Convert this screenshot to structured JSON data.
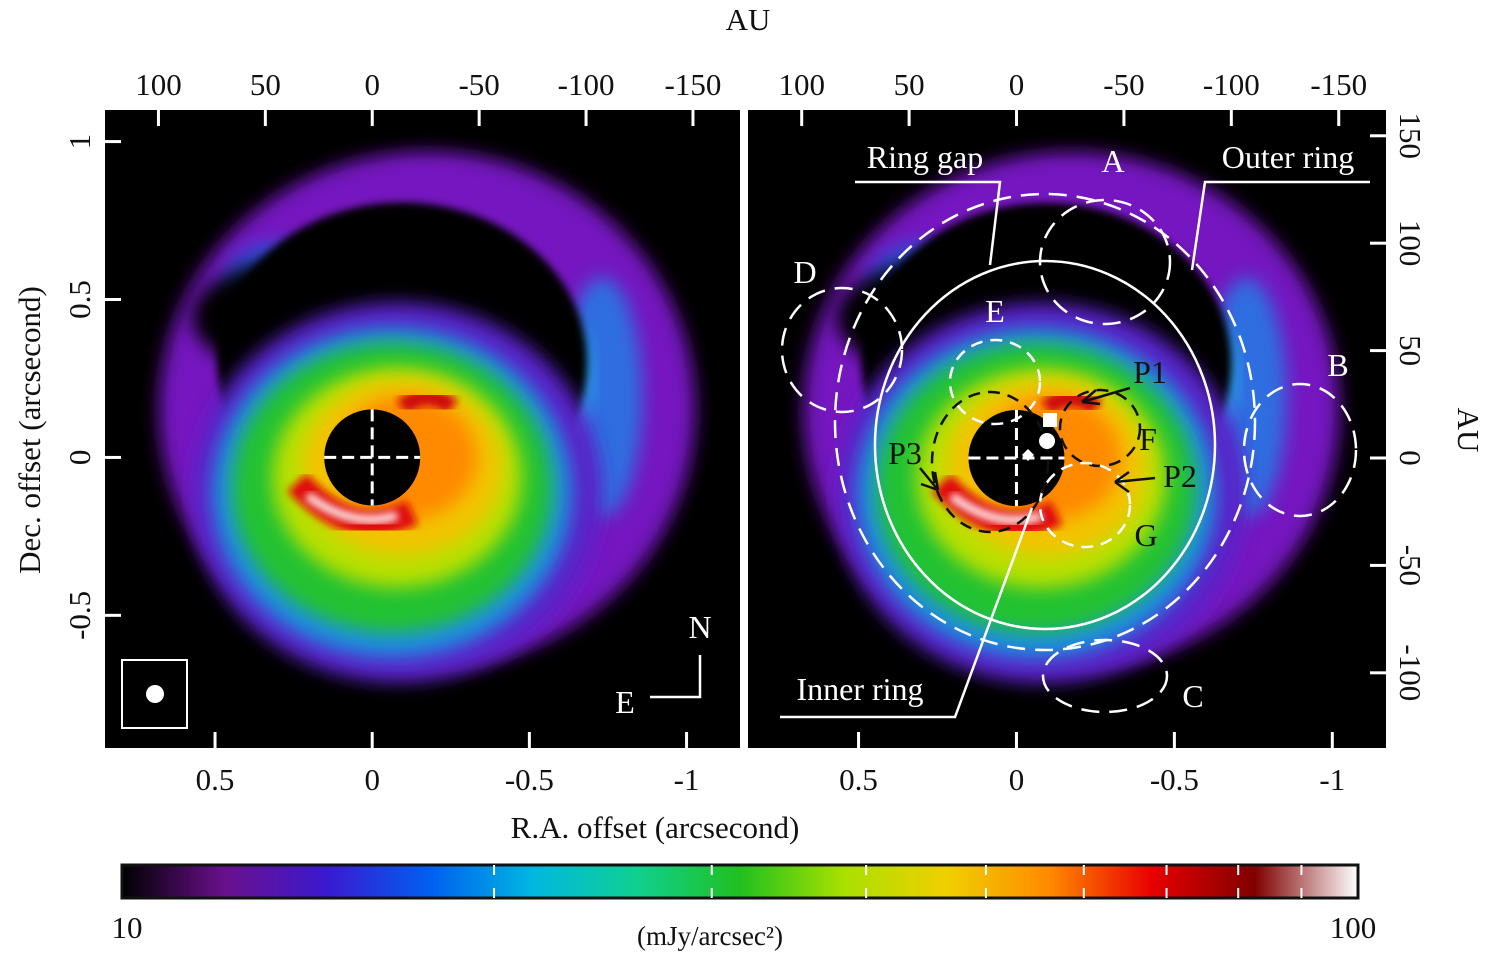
{
  "figure": {
    "top_axis_label": "AU",
    "x_label": "R.A. offset (arcsecond)",
    "y_label": "Dec. offset (arcsecond)",
    "y2_label": "AU"
  },
  "chart_data": [
    {
      "type": "image",
      "xlim": [
        0.85,
        -1.17
      ],
      "xticks": [
        0.5,
        0,
        -0.5,
        -1
      ],
      "x2lim": [
        125,
        -172
      ],
      "x2ticks": [
        100,
        50,
        0,
        -50,
        -100,
        -150
      ],
      "ylim": [
        -0.92,
        1.1
      ],
      "yticks": [
        1,
        0.5,
        0,
        -0.5
      ],
      "annotations": [
        "N",
        "E"
      ]
    },
    {
      "type": "image",
      "xlim": [
        0.85,
        -1.17
      ],
      "xticks": [
        0.5,
        0,
        -0.5,
        -1
      ],
      "x2lim": [
        125,
        -172
      ],
      "x2ticks": [
        100,
        50,
        0,
        -50,
        -100,
        -150
      ],
      "y2lim": [
        -135,
        162
      ],
      "y2ticks": [
        150,
        100,
        50,
        0,
        -50,
        -100
      ],
      "annotations": [
        "Ring gap",
        "Outer ring",
        "Inner ring",
        "A",
        "B",
        "C",
        "D",
        "E",
        "F",
        "G",
        "P1",
        "P2",
        "P3"
      ]
    }
  ],
  "colorbar": {
    "lim": [
      10,
      100
    ],
    "log": true,
    "minor_ticks": [
      20,
      30,
      40,
      50,
      60,
      70,
      80,
      90
    ],
    "label": "(mJy/arcsec²)",
    "colors": [
      "#000000",
      "#6a108c",
      "#3a1ad0",
      "#0060f0",
      "#00b8e0",
      "#10d090",
      "#20c020",
      "#a8e000",
      "#f0d000",
      "#ff8a00",
      "#e80000",
      "#800000",
      "#ffffff"
    ]
  }
}
